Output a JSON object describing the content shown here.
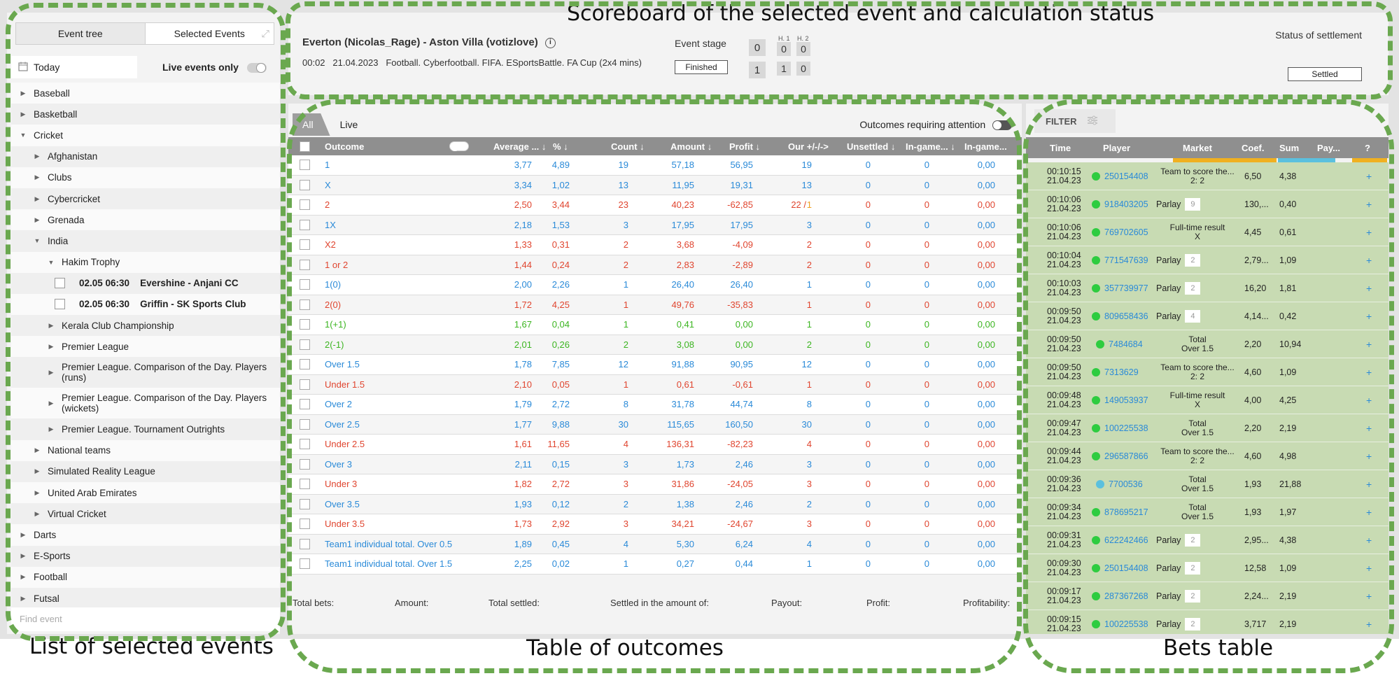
{
  "annotations": {
    "scoreboard": "Scoreboard of the selected event and calculation status",
    "list": "List of selected events",
    "outcomes": "Table of outcomes",
    "bets": "Bets table"
  },
  "left": {
    "tabs": [
      "Event tree",
      "Selected Events"
    ],
    "date": "Today",
    "live_only": "Live events only",
    "find_placeholder": "Find event",
    "tree": [
      {
        "label": "Baseball",
        "level": 0,
        "caret": "right"
      },
      {
        "label": "Basketball",
        "level": 0,
        "caret": "right"
      },
      {
        "label": "Cricket",
        "level": 0,
        "caret": "down"
      },
      {
        "label": "Afghanistan",
        "level": 1,
        "caret": "right"
      },
      {
        "label": "Clubs",
        "level": 1,
        "caret": "right"
      },
      {
        "label": "Cybercricket",
        "level": 1,
        "caret": "right"
      },
      {
        "label": "Grenada",
        "level": 1,
        "caret": "right"
      },
      {
        "label": "India",
        "level": 1,
        "caret": "down"
      },
      {
        "label": "Hakim Trophy",
        "level": 2,
        "caret": "down"
      },
      {
        "label": "02.05 06:30    Evershine - Anjani CC",
        "level": 3,
        "caret": "check"
      },
      {
        "label": "02.05 06:30    Griffin - SK Sports Club",
        "level": 3,
        "caret": "check"
      },
      {
        "label": "Kerala Club Championship",
        "level": 2,
        "caret": "right"
      },
      {
        "label": "Premier League",
        "level": 2,
        "caret": "right"
      },
      {
        "label": "Premier League. Comparison of the Day. Players (runs)",
        "level": 2,
        "caret": "right",
        "tall": true
      },
      {
        "label": "Premier League. Comparison of the Day. Players (wickets)",
        "level": 2,
        "caret": "right",
        "tall": true
      },
      {
        "label": "Premier League. Tournament Outrights",
        "level": 2,
        "caret": "right"
      },
      {
        "label": "National teams",
        "level": 1,
        "caret": "right"
      },
      {
        "label": "Simulated Reality League",
        "level": 1,
        "caret": "right"
      },
      {
        "label": "United Arab Emirates",
        "level": 1,
        "caret": "right"
      },
      {
        "label": "Virtual Cricket",
        "level": 1,
        "caret": "right"
      },
      {
        "label": "Darts",
        "level": 0,
        "caret": "right"
      },
      {
        "label": "E-Sports",
        "level": 0,
        "caret": "right"
      },
      {
        "label": "Football",
        "level": 0,
        "caret": "right"
      },
      {
        "label": "Futsal",
        "level": 0,
        "caret": "right"
      }
    ]
  },
  "scoreboard": {
    "title": "Everton (Nicolas_Rage) - Aston Villa (votizlove)",
    "time": "00:02",
    "date": "21.04.2023",
    "tournament": "Football. Cyberfootball. FIFA. ESportsBattle. FA Cup (2x4 mins)",
    "event_stage_label": "Event stage",
    "stage_value": "Finished",
    "h1": "H. 1",
    "h2": "H. 2",
    "row1": [
      "0",
      "0",
      "0"
    ],
    "row2": [
      "1",
      "1",
      "0"
    ],
    "settlement_label": "Status of settlement",
    "settlement_value": "Settled"
  },
  "outcomes": {
    "tabs": [
      "All",
      "Live"
    ],
    "attention_label": "Outcomes requiring attention",
    "headers": [
      "Outcome",
      "Average ... ↓",
      "% ↓",
      "Count ↓",
      "Amount ↓",
      "Profit ↓",
      "Our +/-/->",
      "Unsettled ↓",
      "In-game... ↓",
      "In-game..."
    ],
    "rows": [
      {
        "o": "1",
        "avg": "3,77",
        "pct": "4,89",
        "cnt": "19",
        "amt": "57,18",
        "pr": "56,95",
        "our": "19",
        "un": "0",
        "ig1": "0",
        "ig2": "0,00",
        "color": "blue"
      },
      {
        "o": "X",
        "avg": "3,34",
        "pct": "1,02",
        "cnt": "13",
        "amt": "11,95",
        "pr": "19,31",
        "our": "13",
        "un": "0",
        "ig1": "0",
        "ig2": "0,00",
        "color": "blue"
      },
      {
        "o": "2",
        "avg": "2,50",
        "pct": "3,44",
        "cnt": "23",
        "amt": "40,23",
        "pr": "-62,85",
        "our": "22 / ",
        "ourx": "1",
        "un": "0",
        "ig1": "0",
        "ig2": "0,00",
        "color": "red"
      },
      {
        "o": "1X",
        "avg": "2,18",
        "pct": "1,53",
        "cnt": "3",
        "amt": "17,95",
        "pr": "17,95",
        "our": "3",
        "un": "0",
        "ig1": "0",
        "ig2": "0,00",
        "color": "blue"
      },
      {
        "o": "X2",
        "avg": "1,33",
        "pct": "0,31",
        "cnt": "2",
        "amt": "3,68",
        "pr": "-4,09",
        "our": "2",
        "un": "0",
        "ig1": "0",
        "ig2": "0,00",
        "color": "red"
      },
      {
        "o": "1 or 2",
        "avg": "1,44",
        "pct": "0,24",
        "cnt": "2",
        "amt": "2,83",
        "pr": "-2,89",
        "our": "2",
        "un": "0",
        "ig1": "0",
        "ig2": "0,00",
        "color": "red"
      },
      {
        "o": "1(0)",
        "avg": "2,00",
        "pct": "2,26",
        "cnt": "1",
        "amt": "26,40",
        "pr": "26,40",
        "our": "1",
        "un": "0",
        "ig1": "0",
        "ig2": "0,00",
        "color": "blue"
      },
      {
        "o": "2(0)",
        "avg": "1,72",
        "pct": "4,25",
        "cnt": "1",
        "amt": "49,76",
        "pr": "-35,83",
        "our": "1",
        "un": "0",
        "ig1": "0",
        "ig2": "0,00",
        "color": "red"
      },
      {
        "o": "1(+1)",
        "avg": "1,67",
        "pct": "0,04",
        "cnt": "1",
        "amt": "0,41",
        "pr": "0,00",
        "our": "1",
        "un": "0",
        "ig1": "0",
        "ig2": "0,00",
        "color": "green"
      },
      {
        "o": "2(-1)",
        "avg": "2,01",
        "pct": "0,26",
        "cnt": "2",
        "amt": "3,08",
        "pr": "0,00",
        "our": "2",
        "un": "0",
        "ig1": "0",
        "ig2": "0,00",
        "color": "green"
      },
      {
        "o": "Over 1.5",
        "avg": "1,78",
        "pct": "7,85",
        "cnt": "12",
        "amt": "91,88",
        "pr": "90,95",
        "our": "12",
        "un": "0",
        "ig1": "0",
        "ig2": "0,00",
        "color": "blue"
      },
      {
        "o": "Under 1.5",
        "avg": "2,10",
        "pct": "0,05",
        "cnt": "1",
        "amt": "0,61",
        "pr": "-0,61",
        "our": "1",
        "un": "0",
        "ig1": "0",
        "ig2": "0,00",
        "color": "red"
      },
      {
        "o": "Over 2",
        "avg": "1,79",
        "pct": "2,72",
        "cnt": "8",
        "amt": "31,78",
        "pr": "44,74",
        "our": "8",
        "un": "0",
        "ig1": "0",
        "ig2": "0,00",
        "color": "blue"
      },
      {
        "o": "Over 2.5",
        "avg": "1,77",
        "pct": "9,88",
        "cnt": "30",
        "amt": "115,65",
        "pr": "160,50",
        "our": "30",
        "un": "0",
        "ig1": "0",
        "ig2": "0,00",
        "color": "blue"
      },
      {
        "o": "Under 2.5",
        "avg": "1,61",
        "pct": "11,65",
        "cnt": "4",
        "amt": "136,31",
        "pr": "-82,23",
        "our": "4",
        "un": "0",
        "ig1": "0",
        "ig2": "0,00",
        "color": "red"
      },
      {
        "o": "Over 3",
        "avg": "2,11",
        "pct": "0,15",
        "cnt": "3",
        "amt": "1,73",
        "pr": "2,46",
        "our": "3",
        "un": "0",
        "ig1": "0",
        "ig2": "0,00",
        "color": "blue"
      },
      {
        "o": "Under 3",
        "avg": "1,82",
        "pct": "2,72",
        "cnt": "3",
        "amt": "31,86",
        "pr": "-24,05",
        "our": "3",
        "un": "0",
        "ig1": "0",
        "ig2": "0,00",
        "color": "red"
      },
      {
        "o": "Over 3.5",
        "avg": "1,93",
        "pct": "0,12",
        "cnt": "2",
        "amt": "1,38",
        "pr": "2,46",
        "our": "2",
        "un": "0",
        "ig1": "0",
        "ig2": "0,00",
        "color": "blue"
      },
      {
        "o": "Under 3.5",
        "avg": "1,73",
        "pct": "2,92",
        "cnt": "3",
        "amt": "34,21",
        "pr": "-24,67",
        "our": "3",
        "un": "0",
        "ig1": "0",
        "ig2": "0,00",
        "color": "red"
      },
      {
        "o": "Team1 individual total. Over 0.5",
        "avg": "1,89",
        "pct": "0,45",
        "cnt": "4",
        "amt": "5,30",
        "pr": "6,24",
        "our": "4",
        "un": "0",
        "ig1": "0",
        "ig2": "0,00",
        "color": "blue"
      },
      {
        "o": "Team1 individual total. Over 1.5",
        "avg": "2,25",
        "pct": "0,02",
        "cnt": "1",
        "amt": "0,27",
        "pr": "0,44",
        "our": "1",
        "un": "0",
        "ig1": "0",
        "ig2": "0,00",
        "color": "blue"
      }
    ],
    "footer": [
      "Total bets:",
      "Amount:",
      "Total settled:",
      "Settled in the amount of:",
      "Payout:",
      "Profit:",
      "Profitability:"
    ]
  },
  "bets": {
    "filter": "FILTER",
    "headers": [
      "Time",
      "Player",
      "Market",
      "Coef.",
      "Sum",
      "Pay...",
      "?"
    ],
    "rows": [
      {
        "t1": "00:10:15",
        "t2": "21.04.23",
        "id": "250154408",
        "m": "Team to score the...",
        "m2": "2: 2",
        "c": "6,50",
        "s": "4,38"
      },
      {
        "t1": "00:10:06",
        "t2": "21.04.23",
        "id": "918403205",
        "m": "Parlay",
        "badge": "9",
        "c": "130,...",
        "s": "0,40"
      },
      {
        "t1": "00:10:06",
        "t2": "21.04.23",
        "id": "769702605",
        "m": "Full-time result",
        "m2": "X",
        "c": "4,45",
        "s": "0,61"
      },
      {
        "t1": "00:10:04",
        "t2": "21.04.23",
        "id": "771547639",
        "m": "Parlay",
        "badge": "2",
        "c": "2,79...",
        "s": "1,09"
      },
      {
        "t1": "00:10:03",
        "t2": "21.04.23",
        "id": "357739977",
        "m": "Parlay",
        "badge": "2",
        "c": "16,20",
        "s": "1,81"
      },
      {
        "t1": "00:09:50",
        "t2": "21.04.23",
        "id": "809658436",
        "m": "Parlay",
        "badge": "4",
        "c": "4,14...",
        "s": "0,42"
      },
      {
        "t1": "00:09:50",
        "t2": "21.04.23",
        "id": "7484684",
        "m": "Total",
        "m2": "Over 1.5",
        "c": "2,20",
        "s": "10,94"
      },
      {
        "t1": "00:09:50",
        "t2": "21.04.23",
        "id": "7313629",
        "m": "Team to score the...",
        "m2": "2: 2",
        "c": "4,60",
        "s": "1,09"
      },
      {
        "t1": "00:09:48",
        "t2": "21.04.23",
        "id": "149053937",
        "m": "Full-time result",
        "m2": "X",
        "c": "4,00",
        "s": "4,25"
      },
      {
        "t1": "00:09:47",
        "t2": "21.04.23",
        "id": "100225538",
        "m": "Total",
        "m2": "Over 1.5",
        "c": "2,20",
        "s": "2,19"
      },
      {
        "t1": "00:09:44",
        "t2": "21.04.23",
        "id": "296587866",
        "m": "Team to score the...",
        "m2": "2: 2",
        "c": "4,60",
        "s": "4,98"
      },
      {
        "t1": "00:09:36",
        "t2": "21.04.23",
        "id": "7700536",
        "m": "Total",
        "m2": "Over 1.5",
        "c": "1,93",
        "s": "21,88",
        "blue": true
      },
      {
        "t1": "00:09:34",
        "t2": "21.04.23",
        "id": "878695217",
        "m": "Total",
        "m2": "Over 1.5",
        "c": "1,93",
        "s": "1,97"
      },
      {
        "t1": "00:09:31",
        "t2": "21.04.23",
        "id": "622242466",
        "m": "Parlay",
        "badge": "2",
        "c": "2,95...",
        "s": "4,38"
      },
      {
        "t1": "00:09:30",
        "t2": "21.04.23",
        "id": "250154408",
        "m": "Parlay",
        "badge": "2",
        "c": "12,58",
        "s": "1,09"
      },
      {
        "t1": "00:09:17",
        "t2": "21.04.23",
        "id": "287367268",
        "m": "Parlay",
        "badge": "2",
        "c": "2,24...",
        "s": "2,19"
      },
      {
        "t1": "00:09:15",
        "t2": "21.04.23",
        "id": "100225538",
        "m": "Parlay",
        "badge": "2",
        "c": "3,717",
        "s": "2,19"
      }
    ]
  },
  "colors": {
    "blue": "#2a8ad8",
    "red": "#e0452f",
    "green": "#3cb521",
    "orange": "#f0a020",
    "dash": "#6aa84f"
  }
}
